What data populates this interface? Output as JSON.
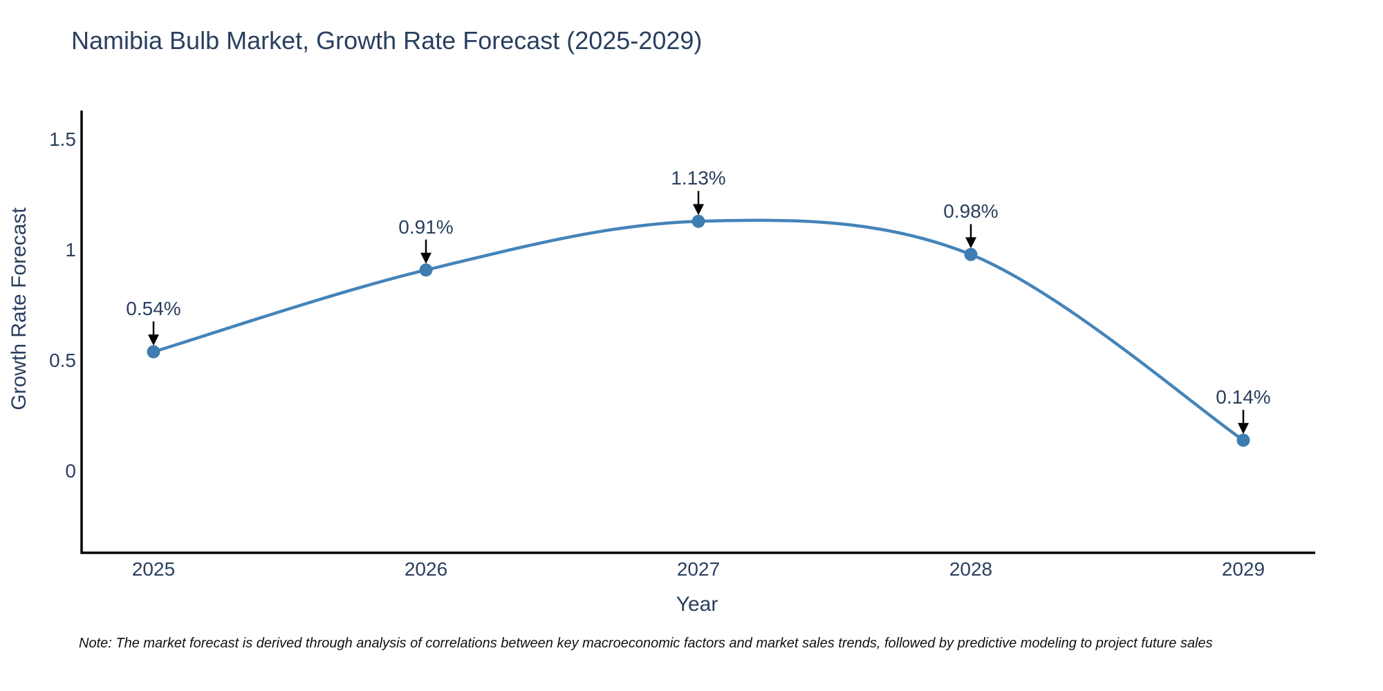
{
  "chart": {
    "title": "Namibia Bulb Market, Growth Rate Forecast (2025-2029)",
    "note": "Note: The market forecast is derived through analysis of correlations between key macroeconomic factors and market sales trends, followed by predictive modeling to project future sales"
  },
  "chart_data": {
    "type": "line",
    "title": "Namibia Bulb Market, Growth Rate Forecast (2025-2029)",
    "xlabel": "Year",
    "ylabel": "Growth Rate Forecast",
    "x": [
      2025,
      2026,
      2027,
      2028,
      2029
    ],
    "series": [
      {
        "name": "Growth Rate Forecast",
        "values": [
          0.54,
          0.91,
          1.13,
          0.98,
          0.14
        ],
        "point_labels": [
          "0.54%",
          "0.91%",
          "1.13%",
          "0.98%",
          "0.14%"
        ]
      }
    ],
    "x_tick_labels": [
      "2025",
      "2026",
      "2027",
      "2028",
      "2029"
    ],
    "y_tick_labels": [
      "0",
      "0.5",
      "1",
      "1.5"
    ],
    "y_tick_values": [
      0,
      0.5,
      1,
      1.5
    ],
    "xlim": [
      2024.736,
      2029.264
    ],
    "ylim": [
      -0.369,
      1.631
    ],
    "line_shape": "spline",
    "grid": false,
    "legend_visible": false,
    "annotations_have_arrows": true,
    "colors": {
      "line": "#4484b9",
      "marker": "#3e7cb1",
      "axis": "#000000",
      "text": "#2a3f5f",
      "arrow": "#000000",
      "background": "#ffffff"
    }
  }
}
